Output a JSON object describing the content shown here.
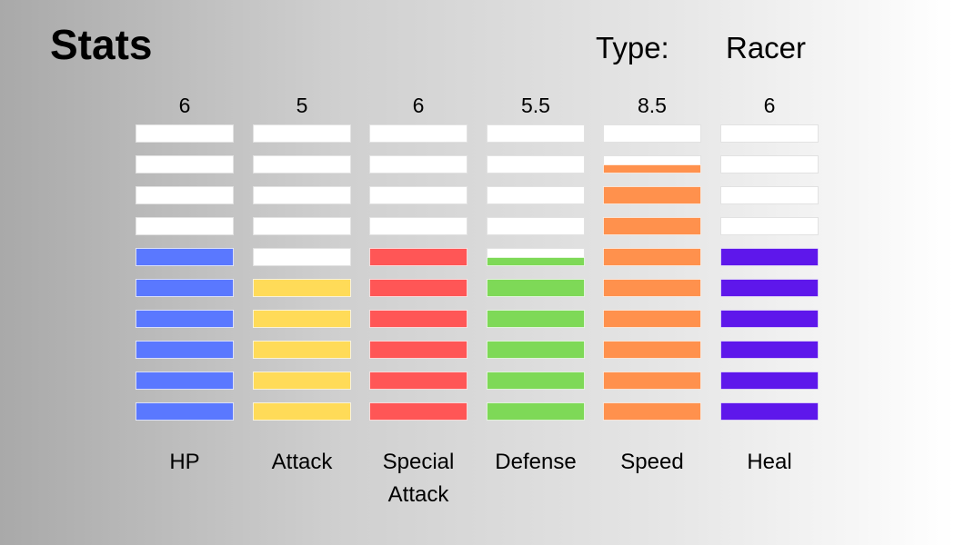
{
  "header": {
    "title": "Stats",
    "type_label": "Type:",
    "type_value": "Racer"
  },
  "chart_data": {
    "type": "bar",
    "title": "Stats",
    "categories": [
      "HP",
      "Attack",
      "Special Attack",
      "Defense",
      "Speed",
      "Heal"
    ],
    "category_lines": [
      [
        "HP"
      ],
      [
        "Attack"
      ],
      [
        "Special",
        "Attack"
      ],
      [
        "Defense"
      ],
      [
        "Speed"
      ],
      [
        "Heal"
      ]
    ],
    "values": [
      6,
      5,
      6,
      5.5,
      8.5,
      6
    ],
    "value_labels": [
      "6",
      "5",
      "6",
      "5.5",
      "8.5",
      "6"
    ],
    "max_value": 10,
    "segments": 10,
    "colors": [
      "#5a78ff",
      "#ffdb58",
      "#ff5656",
      "#7ed957",
      "#ff914d",
      "#5e17eb"
    ],
    "empty_color": "#ffffff"
  }
}
